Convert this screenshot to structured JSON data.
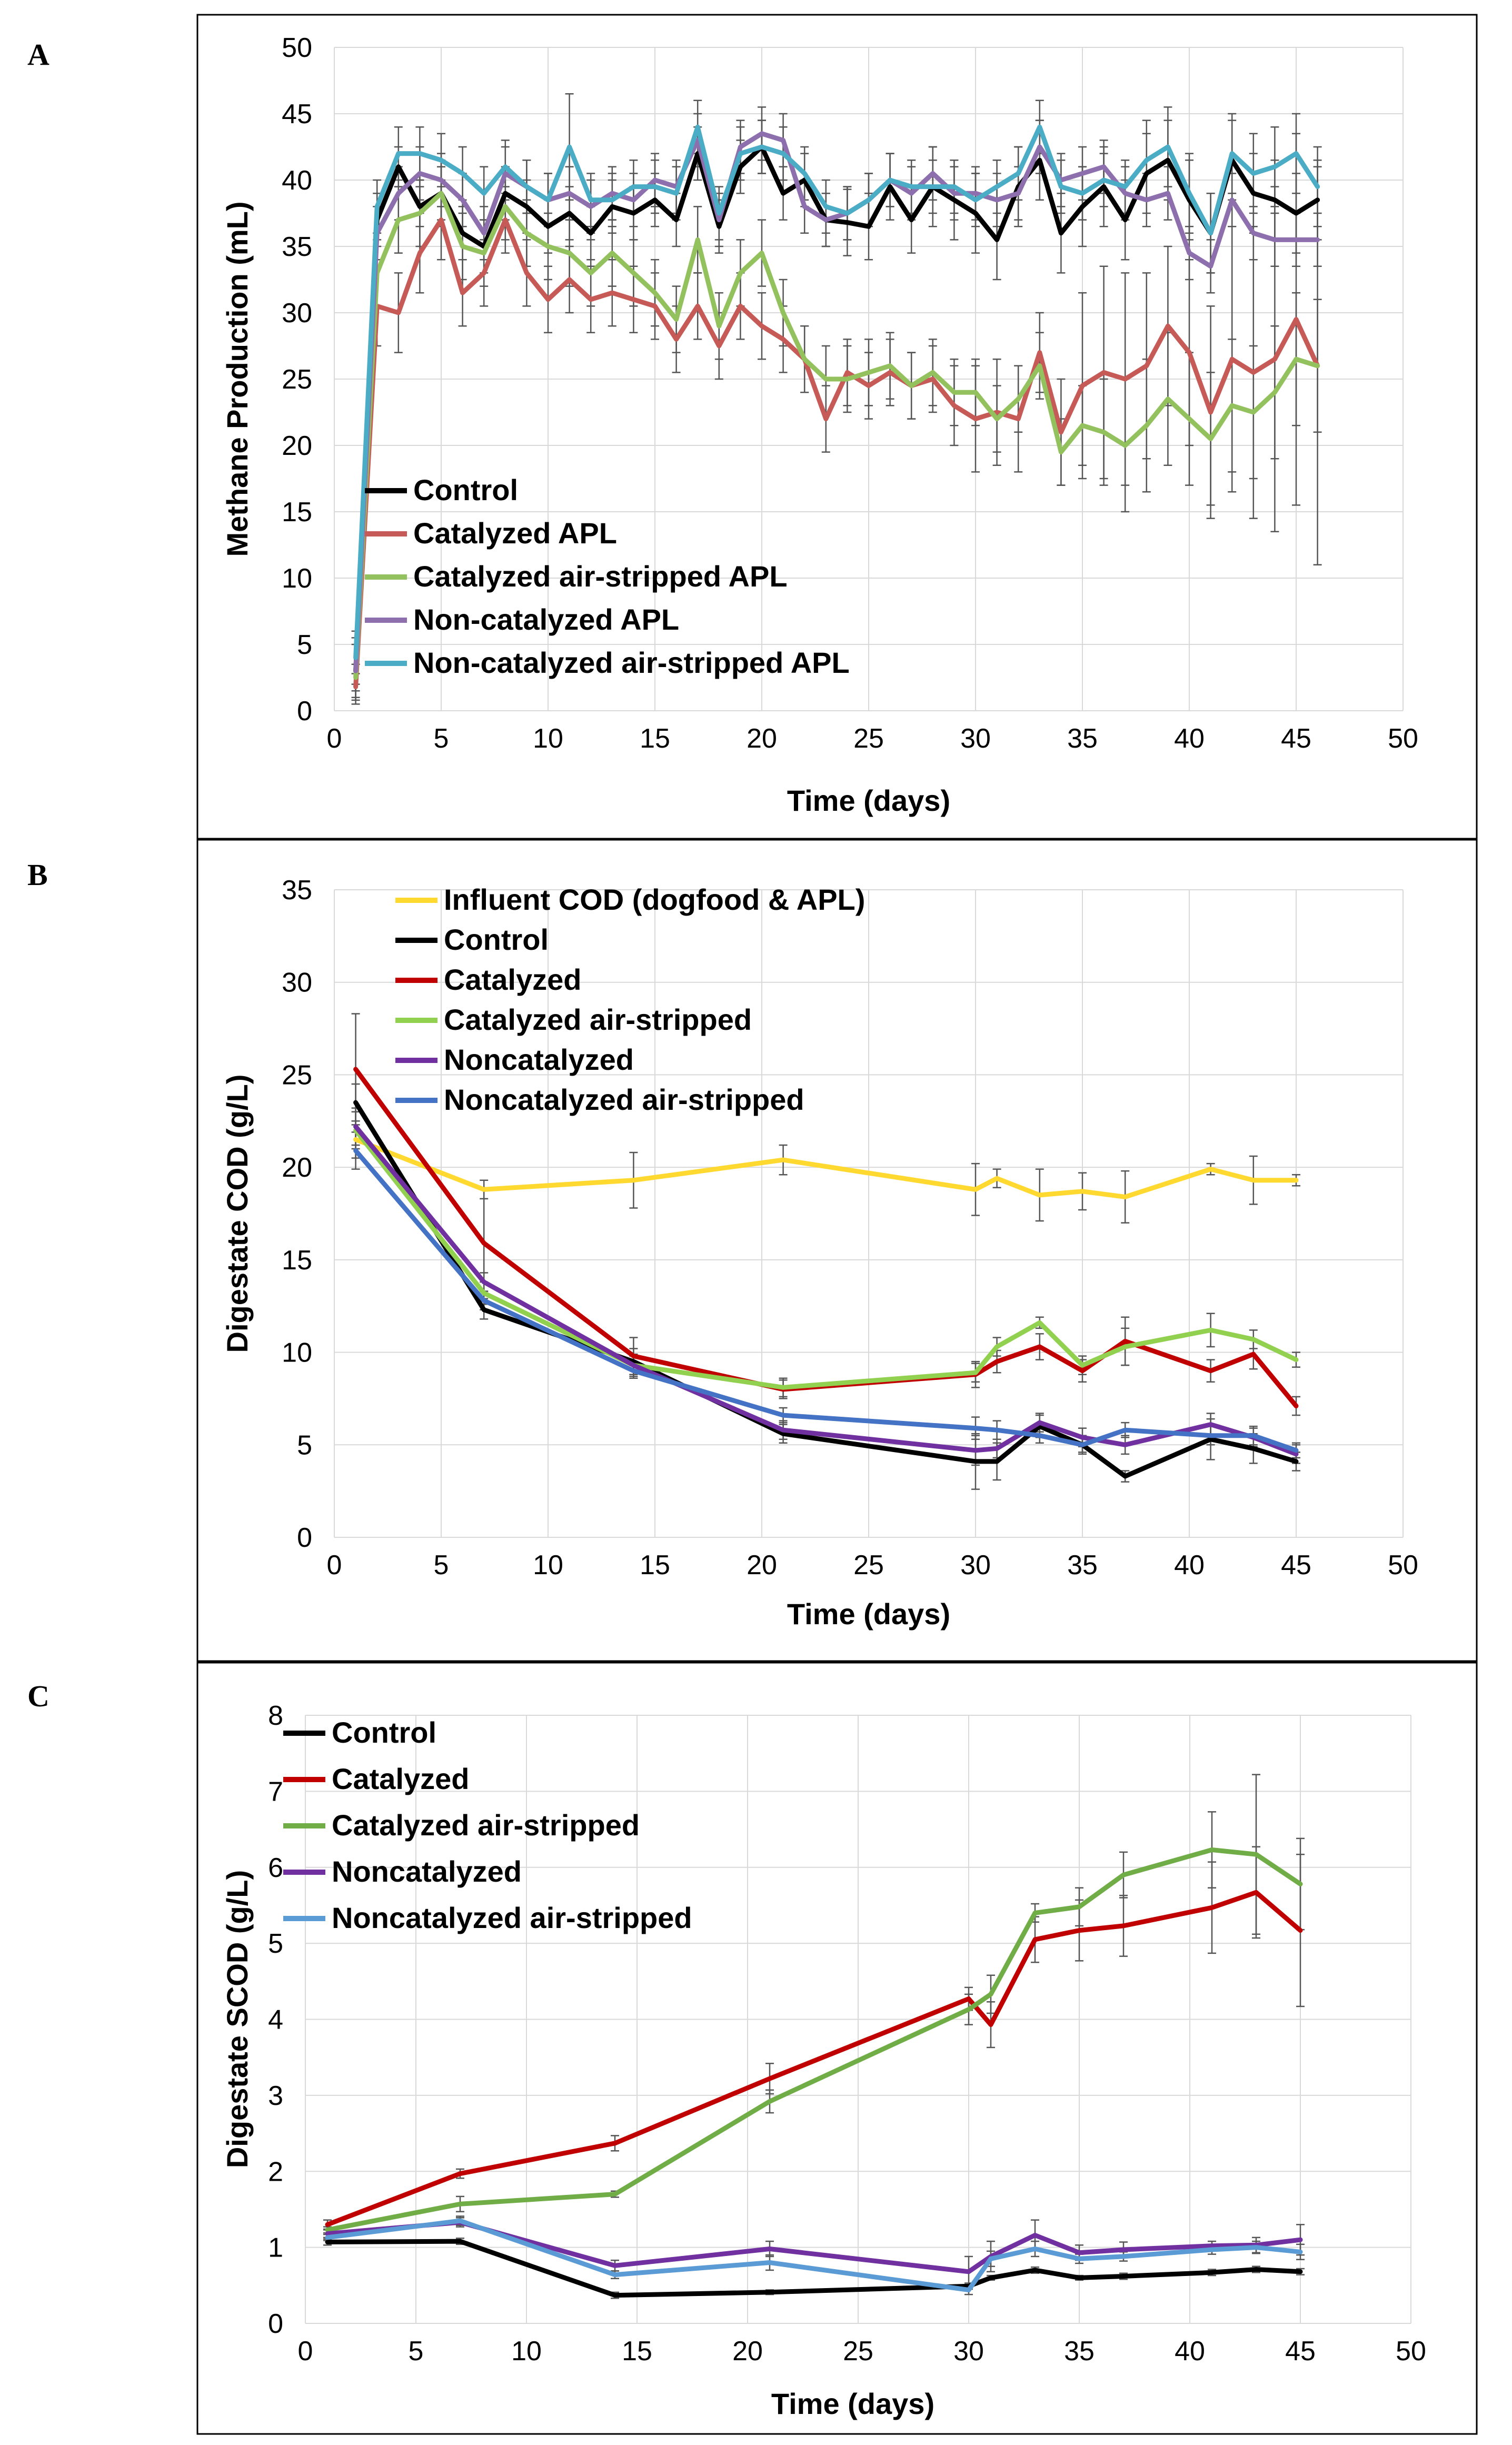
{
  "panel_labels": [
    "A",
    "B",
    "C"
  ],
  "chart_data": [
    {
      "type": "line",
      "title": "",
      "xlabel": "Time (days)",
      "ylabel": "Methane Production (mL)",
      "xlim": [
        0,
        50
      ],
      "ylim": [
        0,
        50
      ],
      "xticks": [
        0,
        5,
        10,
        15,
        20,
        25,
        30,
        35,
        40,
        45,
        50
      ],
      "yticks": [
        0,
        5,
        10,
        15,
        20,
        25,
        30,
        35,
        40,
        45,
        50
      ],
      "grid": true,
      "legend_position": "bottom-left",
      "x": [
        1,
        2,
        3,
        4,
        5,
        6,
        7,
        8,
        9,
        10,
        11,
        12,
        13,
        14,
        15,
        16,
        17,
        18,
        19,
        20,
        21,
        22,
        23,
        24,
        25,
        26,
        27,
        28,
        29,
        30,
        31,
        32,
        33,
        34,
        35,
        36,
        37,
        38,
        39,
        40,
        41,
        42,
        43,
        44,
        45,
        46
      ],
      "series": [
        {
          "name": "Control",
          "color": "#000000",
          "values": [
            3,
            37,
            41,
            38,
            39,
            36,
            35,
            39,
            38,
            36.5,
            37.5,
            36,
            38,
            37.5,
            38.5,
            37,
            42,
            36.5,
            41,
            42.5,
            39,
            40,
            37,
            36.8,
            36.5,
            39.5,
            37,
            39.5,
            38.5,
            37.5,
            35.5,
            39.5,
            41.5,
            36,
            38,
            39.5,
            37,
            40.5,
            41.5,
            38.5,
            36,
            41.5,
            39,
            38.5,
            37.5,
            38.5
          ],
          "errors": [
            2.5,
            2,
            1.5,
            1.5,
            2,
            2,
            2,
            2,
            2,
            2,
            2,
            2,
            2,
            2,
            2,
            2,
            2,
            2,
            2,
            2,
            2,
            2,
            2,
            2.5,
            2.5,
            2.5,
            2.5,
            3,
            3,
            3,
            3,
            3,
            3,
            3,
            3,
            3,
            3,
            3,
            3,
            3,
            3,
            3,
            3,
            3,
            3,
            3
          ]
        },
        {
          "name": "Catalyzed APL",
          "color": "#c55a57",
          "values": [
            1.8,
            30.5,
            30,
            34.5,
            37,
            31.5,
            33,
            37,
            33,
            31,
            32.5,
            31,
            31.5,
            31,
            30.5,
            28,
            30.5,
            27.5,
            30.5,
            29,
            28,
            26.5,
            22,
            25.5,
            24.5,
            25.5,
            24.5,
            25,
            23,
            22,
            22.5,
            22,
            27,
            21,
            24.5,
            25.5,
            25,
            26,
            29,
            27,
            22.5,
            26.5,
            25.5,
            26.5,
            29.5,
            26
          ],
          "errors": [
            1,
            3,
            3,
            3,
            3,
            2.5,
            2.5,
            2.5,
            2.5,
            2.5,
            2.5,
            2.5,
            2.5,
            2.5,
            2.5,
            2.5,
            2.5,
            2.5,
            2.5,
            2.5,
            2.5,
            2.5,
            2.5,
            2.5,
            2.5,
            2.5,
            2.5,
            2.5,
            3,
            4,
            4,
            4,
            3,
            4,
            7,
            8,
            8,
            7,
            6,
            7,
            8,
            10,
            11,
            13,
            14,
            15
          ]
        },
        {
          "name": "Catalyzed air-stripped APL",
          "color": "#93c15d",
          "values": [
            2.5,
            33,
            37,
            37.5,
            39,
            35,
            34.5,
            38,
            36,
            35,
            34.5,
            33,
            34.5,
            33,
            31.5,
            29.5,
            35.5,
            29,
            33,
            34.5,
            30,
            26.5,
            25,
            25,
            25.5,
            26,
            24.5,
            25.5,
            24,
            24,
            22,
            23.5,
            26,
            19.5,
            21.5,
            21,
            20,
            21.5,
            23.5,
            22,
            20.5,
            23,
            22.5,
            24,
            26.5,
            26
          ],
          "errors": [
            1,
            2.5,
            2.5,
            2.5,
            2.5,
            2.5,
            2.5,
            2.5,
            2.5,
            2.5,
            2.5,
            2.5,
            2.5,
            2.5,
            2.5,
            2.5,
            2.5,
            2.5,
            2.5,
            2.5,
            2.5,
            2.5,
            2.5,
            2.5,
            2.5,
            2.5,
            2.5,
            2.5,
            2.5,
            2.5,
            2.5,
            2.5,
            2.5,
            2.5,
            3,
            4,
            5,
            5,
            5,
            5,
            5,
            5,
            5,
            5,
            5,
            5
          ]
        },
        {
          "name": "Non-catalyzed APL",
          "color": "#8e6fae",
          "values": [
            3,
            36,
            39,
            40.5,
            40,
            38.5,
            36,
            40.5,
            39.5,
            38.5,
            39,
            38,
            39,
            38.5,
            40,
            39.5,
            43,
            37,
            42.5,
            43.5,
            43,
            38,
            37,
            37.5,
            38.5,
            40,
            39,
            40.5,
            39,
            39,
            38.5,
            39,
            42.5,
            40,
            40.5,
            41,
            39,
            38.5,
            39,
            34.5,
            33.5,
            38.5,
            36,
            35.5,
            35.5,
            35.5
          ],
          "errors": [
            2,
            2,
            2,
            2,
            2,
            2,
            2,
            2,
            2,
            2,
            2,
            2,
            2,
            2,
            2,
            2,
            2,
            2,
            2,
            2,
            2,
            2,
            2,
            2,
            2,
            2,
            2,
            2,
            2,
            2,
            2,
            2,
            2,
            2,
            2,
            2,
            2,
            2,
            2,
            2,
            2,
            2,
            2,
            2,
            2,
            2
          ]
        },
        {
          "name": "Non-catalyzed air-stripped APL",
          "color": "#4bacc6",
          "values": [
            4,
            38,
            42,
            42,
            41.5,
            40.5,
            39,
            41,
            39.5,
            38.5,
            42.5,
            38.5,
            38.5,
            39.5,
            39.5,
            39,
            44,
            37.5,
            42,
            42.5,
            42,
            40.5,
            38,
            37.5,
            38.5,
            40,
            39.5,
            39.5,
            39.5,
            38.5,
            39.5,
            40.5,
            44,
            39.5,
            39,
            40,
            39.5,
            41.5,
            42.5,
            39,
            36,
            42,
            40.5,
            41,
            42,
            39.5
          ],
          "errors": [
            2,
            2,
            2,
            2,
            2,
            2,
            2,
            2,
            2,
            2,
            4,
            2,
            2,
            2,
            2,
            2,
            2,
            2,
            2,
            2,
            2,
            2,
            2,
            2,
            2,
            2,
            2,
            2,
            2,
            2,
            2,
            2,
            2,
            2,
            2,
            2,
            2,
            3,
            3,
            3,
            3,
            3,
            3,
            3,
            3,
            3
          ]
        }
      ]
    },
    {
      "type": "line",
      "title": "",
      "xlabel": "Time (days)",
      "ylabel": "Digestate COD (g/L)",
      "xlim": [
        0,
        50
      ],
      "ylim": [
        0,
        35
      ],
      "xticks": [
        0,
        5,
        10,
        15,
        20,
        25,
        30,
        35,
        40,
        45,
        50
      ],
      "yticks": [
        0,
        5,
        10,
        15,
        20,
        25,
        30,
        35
      ],
      "grid": true,
      "legend_position": "top",
      "x": [
        1,
        7,
        14,
        21,
        30,
        31,
        33,
        35,
        37,
        41,
        43,
        45
      ],
      "series": [
        {
          "name": "Influent COD (dogfood & APL)",
          "color": "#ffd92f",
          "values": [
            21.5,
            18.8,
            19.3,
            20.4,
            18.8,
            19.4,
            18.5,
            18.7,
            18.4,
            19.9,
            19.3,
            19.3
          ],
          "errors": [
            1,
            0.5,
            1.5,
            0.8,
            1.4,
            0.5,
            1.4,
            1,
            1.4,
            0.3,
            1.3,
            0.3
          ]
        },
        {
          "name": "Control",
          "color": "#000000",
          "values": [
            23.5,
            12.3,
            9.5,
            5.6,
            4.1,
            4.1,
            6,
            5,
            3.3,
            5.3,
            4.8,
            4.1
          ],
          "errors": [
            1,
            0.5,
            0.7,
            0.5,
            1.5,
            1,
            0.6,
            0.5,
            0.3,
            1.1,
            0.8,
            0.5
          ]
        },
        {
          "name": "Catalyzed",
          "color": "#c00000",
          "values": [
            25.3,
            15.9,
            9.8,
            8,
            8.8,
            9.5,
            10.3,
            9,
            10.6,
            9,
            9.9,
            7.1
          ],
          "errors": [
            3,
            3,
            1,
            0.5,
            0.7,
            0.6,
            0.7,
            0.6,
            1.3,
            0.6,
            0.8,
            0.5
          ]
        },
        {
          "name": "Catalyzed air-stripped",
          "color": "#92d050",
          "values": [
            22,
            13.2,
            9.3,
            8.1,
            8.9,
            10.3,
            11.6,
            9.3,
            10.3,
            11.2,
            10.7,
            9.6
          ],
          "errors": [
            1,
            0.6,
            0.6,
            0.5,
            0.5,
            0.5,
            0.3,
            0.5,
            1,
            0.9,
            0.5,
            0.4
          ]
        },
        {
          "name": "Noncatalyzed",
          "color": "#7030a0",
          "values": [
            22.2,
            13.8,
            9.3,
            5.8,
            4.7,
            4.8,
            6.2,
            5.4,
            5,
            6.1,
            5.4,
            4.5
          ],
          "errors": [
            1,
            0.5,
            0.5,
            0.5,
            0.8,
            0.5,
            0.5,
            0.5,
            0.5,
            0.6,
            0.5,
            0.5
          ]
        },
        {
          "name": "Noncatalyzed air-stripped",
          "color": "#4472c4",
          "values": [
            20.9,
            12.8,
            9,
            6.6,
            5.9,
            5.8,
            5.5,
            5,
            5.8,
            5.5,
            5.5,
            4.7
          ],
          "errors": [
            1,
            0.5,
            0.4,
            0.4,
            0.6,
            0.5,
            0.4,
            0.4,
            0.4,
            0.5,
            0.5,
            0.4
          ]
        }
      ]
    },
    {
      "type": "line",
      "title": "",
      "xlabel": "Time (days)",
      "ylabel": "Digestate SCOD (g/L)",
      "xlim": [
        0,
        50
      ],
      "ylim": [
        0,
        8
      ],
      "xticks": [
        0,
        5,
        10,
        15,
        20,
        25,
        30,
        35,
        40,
        45,
        50
      ],
      "yticks": [
        0,
        1,
        2,
        3,
        4,
        5,
        6,
        7,
        8
      ],
      "grid": true,
      "legend_position": "top-left",
      "x": [
        1,
        7,
        14,
        21,
        30,
        31,
        33,
        35,
        37,
        41,
        43,
        45
      ],
      "series": [
        {
          "name": "Control",
          "color": "#000000",
          "values": [
            1.07,
            1.08,
            0.37,
            0.41,
            0.49,
            0.6,
            0.7,
            0.6,
            0.62,
            0.67,
            0.71,
            0.68
          ],
          "errors": [
            0.04,
            0.04,
            0.04,
            0.03,
            0.04,
            0.03,
            0.04,
            0.03,
            0.04,
            0.04,
            0.04,
            0.04
          ]
        },
        {
          "name": "Catalyzed",
          "color": "#c00000",
          "values": [
            1.3,
            1.97,
            2.37,
            3.22,
            4.27,
            3.93,
            5.05,
            5.17,
            5.23,
            5.47,
            5.67,
            5.17
          ],
          "errors": [
            0.06,
            0.06,
            0.1,
            0.2,
            0.15,
            0.3,
            0.3,
            0.4,
            0.4,
            0.6,
            0.6,
            1
          ]
        },
        {
          "name": "Catalyzed air-stripped",
          "color": "#70ad47",
          "values": [
            1.23,
            1.57,
            1.7,
            2.92,
            4.13,
            4.33,
            5.4,
            5.48,
            5.9,
            6.23,
            6.17,
            5.78
          ],
          "errors": [
            0.04,
            0.1,
            0.04,
            0.15,
            0.2,
            0.25,
            0.12,
            0.25,
            0.3,
            0.5,
            1.05,
            0.6
          ]
        },
        {
          "name": "Noncatalyzed",
          "color": "#7030a0",
          "values": [
            1.18,
            1.33,
            0.76,
            0.98,
            0.68,
            0.88,
            1.16,
            0.93,
            0.97,
            1.02,
            1.03,
            1.1
          ],
          "errors": [
            0.05,
            0.06,
            0.07,
            0.1,
            0.2,
            0.2,
            0.2,
            0.1,
            0.1,
            0.06,
            0.1,
            0.2
          ]
        },
        {
          "name": "Noncatalyzed air-stripped",
          "color": "#5b9bd5",
          "values": [
            1.13,
            1.35,
            0.64,
            0.8,
            0.44,
            0.85,
            0.98,
            0.85,
            0.88,
            0.97,
            1,
            0.94
          ],
          "errors": [
            0.04,
            0.06,
            0.05,
            0.1,
            0.06,
            0.1,
            0.1,
            0.06,
            0.06,
            0.06,
            0.08,
            0.1
          ]
        }
      ]
    }
  ]
}
